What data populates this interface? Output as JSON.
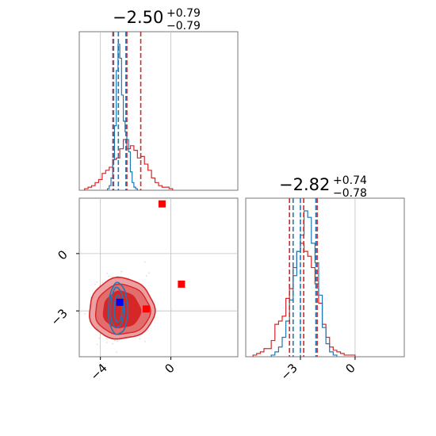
{
  "colors": {
    "red": "#d62728",
    "blue": "#1f77b4",
    "red_fill_dark": "#d62728",
    "red_fill_light": "#eda0a1",
    "marker_red": "#ff0000",
    "marker_blue": "#0000ff",
    "grid": "#c0c0c0",
    "frame": "#777777"
  },
  "chart_data": [
    {
      "type": "histogram",
      "panel": "top-left",
      "title_main": "−2.50",
      "title_sup": "+0.79",
      "title_sub": "−0.79",
      "xlim": [
        -5.2,
        3.8
      ],
      "grid_x": [
        -4,
        0
      ],
      "series": [
        {
          "name": "",
          "color": "red",
          "bin_edges": [
            -4.9,
            -4.7,
            -4.5,
            -4.3,
            -4.1,
            -3.9,
            -3.7,
            -3.5,
            -3.3,
            -3.1,
            -2.9,
            -2.7,
            -2.5,
            -2.3,
            -2.1,
            -1.9,
            -1.7,
            -1.5,
            -1.3,
            -1.1,
            -0.9,
            -0.7,
            -0.5,
            -0.3,
            -0.1,
            0.1
          ],
          "heights": [
            0.01,
            0.02,
            0.03,
            0.05,
            0.07,
            0.11,
            0.13,
            0.15,
            0.2,
            0.21,
            0.27,
            0.33,
            0.27,
            0.29,
            0.26,
            0.21,
            0.22,
            0.17,
            0.13,
            0.08,
            0.05,
            0.03,
            0.02,
            0.02,
            0.01
          ]
        },
        {
          "name": "",
          "color": "blue",
          "bin_edges": [
            -3.6,
            -3.5,
            -3.4,
            -3.3,
            -3.2,
            -3.1,
            -3.0,
            -2.9,
            -2.8,
            -2.7,
            -2.6,
            -2.5,
            -2.4,
            -2.3,
            -2.2,
            -2.1,
            -2.0,
            -1.9
          ],
          "heights": [
            0.01,
            0.03,
            0.08,
            0.2,
            0.42,
            0.78,
            0.95,
            0.86,
            0.62,
            0.45,
            0.38,
            0.33,
            0.25,
            0.12,
            0.05,
            0.02,
            0.01
          ]
        }
      ],
      "vlines": [
        {
          "color": "red",
          "values": [
            -3.29,
            -2.5,
            -1.71
          ]
        },
        {
          "color": "blue",
          "values": [
            -3.25,
            -2.98,
            -2.55
          ]
        }
      ]
    },
    {
      "type": "scatter",
      "panel": "bottom-left",
      "xlim": [
        -5.2,
        3.8
      ],
      "ylim": [
        -5.4,
        2.9
      ],
      "xticks": [
        -4,
        0
      ],
      "yticks": [
        0,
        -3
      ],
      "xtick_labels": [
        "−4",
        "0"
      ],
      "ytick_labels": [
        "0",
        "−3"
      ],
      "red_contour_center": [
        -2.8,
        -2.9
      ],
      "blue_contour_center": [
        -3.0,
        -2.9
      ],
      "markers": [
        {
          "color": "marker_red",
          "x": -0.5,
          "y": 2.6
        },
        {
          "color": "marker_red",
          "x": 0.6,
          "y": -1.6
        },
        {
          "color": "marker_red",
          "x": -1.4,
          "y": -2.9
        },
        {
          "color": "marker_blue",
          "x": -2.9,
          "y": -2.55
        }
      ]
    },
    {
      "type": "histogram",
      "panel": "bottom-right",
      "title_main": "−2.82",
      "title_sup": "+0.74",
      "title_sub": "−0.78",
      "xlim": [
        -6.0,
        2.7
      ],
      "xticks": [
        -3,
        0
      ],
      "xtick_labels": [
        "−3",
        "0"
      ],
      "series": [
        {
          "name": "",
          "color": "red",
          "bin_edges": [
            -5.6,
            -5.4,
            -5.2,
            -5.0,
            -4.8,
            -4.6,
            -4.4,
            -4.2,
            -4.0,
            -3.8,
            -3.6,
            -3.4,
            -3.2,
            -3.0,
            -2.8,
            -2.6,
            -2.4,
            -2.2,
            -2.0,
            -1.8,
            -1.6,
            -1.4,
            -1.2,
            -1.0,
            -0.8,
            -0.6,
            -0.4,
            -0.2,
            0.0
          ],
          "heights": [
            0.01,
            0.02,
            0.03,
            0.05,
            0.05,
            0.1,
            0.2,
            0.22,
            0.25,
            0.36,
            0.42,
            0.55,
            0.65,
            0.7,
            0.65,
            0.62,
            0.55,
            0.45,
            0.33,
            0.2,
            0.12,
            0.06,
            0.04,
            0.03,
            0.02,
            0.01,
            0.01,
            0.01
          ]
        },
        {
          "name": "",
          "color": "blue",
          "bin_edges": [
            -4.6,
            -4.4,
            -4.2,
            -4.0,
            -3.8,
            -3.6,
            -3.4,
            -3.2,
            -3.0,
            -2.8,
            -2.6,
            -2.4,
            -2.2,
            -2.0,
            -1.8,
            -1.6,
            -1.4,
            -1.2,
            -1.0
          ],
          "heights": [
            0.01,
            0.03,
            0.06,
            0.12,
            0.22,
            0.35,
            0.5,
            0.65,
            0.75,
            0.9,
            0.86,
            0.7,
            0.58,
            0.38,
            0.18,
            0.08,
            0.03,
            0.01
          ]
        }
      ],
      "vlines": [
        {
          "color": "red",
          "values": [
            -3.6,
            -2.82,
            -2.08
          ]
        },
        {
          "color": "blue",
          "values": [
            -3.4,
            -3.0,
            -2.15
          ]
        }
      ]
    }
  ]
}
